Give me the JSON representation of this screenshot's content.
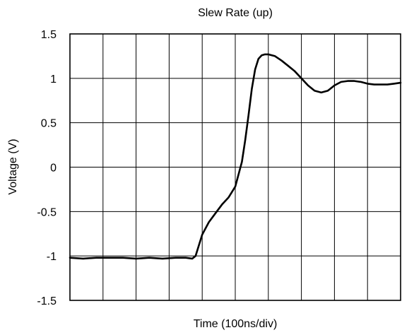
{
  "chart_data": {
    "type": "line",
    "title": "Slew Rate (up)",
    "xlabel": "Time (100ns/div)",
    "ylabel": "Voltage (V)",
    "x_divisions": 10,
    "xlim": [
      0,
      10
    ],
    "ylim": [
      -1.5,
      1.5
    ],
    "y_ticks": [
      {
        "value": -1.5,
        "label": "-1.5"
      },
      {
        "value": -1,
        "label": "-1"
      },
      {
        "value": -0.5,
        "label": "-0.5"
      },
      {
        "value": 0,
        "label": "0"
      },
      {
        "value": 0.5,
        "label": "0.5"
      },
      {
        "value": 1,
        "label": "1"
      },
      {
        "value": 1.5,
        "label": "1.5"
      }
    ],
    "grid": true,
    "series": [
      {
        "color": "#000000",
        "x": [
          0.0,
          0.4,
          0.8,
          1.2,
          1.6,
          2.0,
          2.4,
          2.8,
          3.2,
          3.5,
          3.7,
          3.8,
          3.9,
          4.0,
          4.2,
          4.4,
          4.6,
          4.8,
          5.0,
          5.1,
          5.2,
          5.3,
          5.4,
          5.5,
          5.6,
          5.7,
          5.8,
          5.9,
          6.0,
          6.2,
          6.4,
          6.6,
          6.8,
          7.0,
          7.2,
          7.4,
          7.6,
          7.8,
          8.0,
          8.2,
          8.4,
          8.6,
          8.8,
          9.0,
          9.2,
          9.4,
          9.6,
          9.8,
          10.0
        ],
        "y": [
          -1.02,
          -1.03,
          -1.02,
          -1.02,
          -1.02,
          -1.03,
          -1.02,
          -1.03,
          -1.02,
          -1.02,
          -1.03,
          -1.0,
          -0.88,
          -0.76,
          -0.62,
          -0.52,
          -0.42,
          -0.34,
          -0.22,
          -0.08,
          0.06,
          0.3,
          0.58,
          0.88,
          1.1,
          1.22,
          1.26,
          1.27,
          1.27,
          1.25,
          1.2,
          1.14,
          1.08,
          1.0,
          0.92,
          0.86,
          0.84,
          0.86,
          0.92,
          0.96,
          0.97,
          0.97,
          0.96,
          0.94,
          0.93,
          0.93,
          0.93,
          0.94,
          0.95
        ]
      }
    ]
  }
}
